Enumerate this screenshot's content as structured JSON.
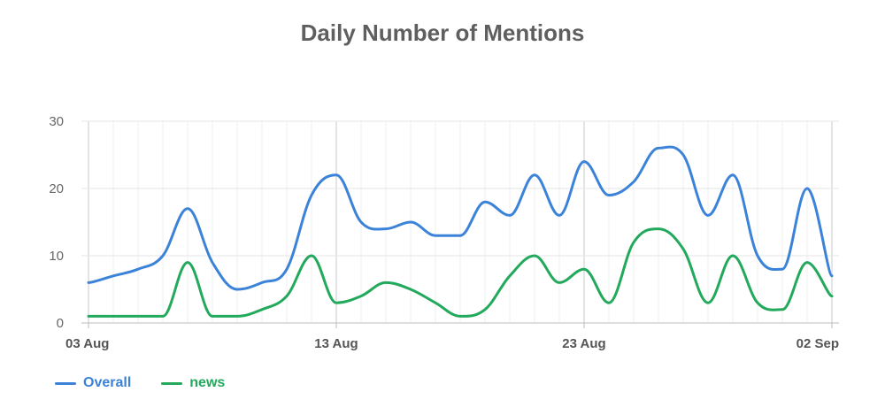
{
  "chart_data": {
    "type": "line",
    "title": "Daily Number of Mentions",
    "xlabel": "",
    "ylabel": "",
    "ylim": [
      0,
      30
    ],
    "yticks": [
      "0",
      "10",
      "20",
      "30"
    ],
    "x_tick_labels": [
      {
        "day": 0,
        "label": "03 Aug"
      },
      {
        "day": 10,
        "label": "13 Aug"
      },
      {
        "day": 20,
        "label": "23 Aug"
      },
      {
        "day": 30,
        "label": "02 Sep"
      }
    ],
    "x": [
      "03 Aug",
      "04 Aug",
      "05 Aug",
      "06 Aug",
      "07 Aug",
      "08 Aug",
      "09 Aug",
      "10 Aug",
      "11 Aug",
      "12 Aug",
      "13 Aug",
      "14 Aug",
      "15 Aug",
      "16 Aug",
      "17 Aug",
      "18 Aug",
      "19 Aug",
      "20 Aug",
      "21 Aug",
      "22 Aug",
      "23 Aug",
      "24 Aug",
      "25 Aug",
      "26 Aug",
      "27 Aug",
      "28 Aug",
      "29 Aug",
      "30 Aug",
      "31 Aug",
      "01 Sep",
      "02 Sep"
    ],
    "grid": true,
    "legend_position": "bottom-left",
    "series": [
      {
        "name": "Overall",
        "color": "#3b82d9",
        "values": [
          6,
          7,
          8,
          10,
          17,
          9,
          5,
          6,
          8,
          19,
          22,
          15,
          14,
          15,
          13,
          13,
          18,
          16,
          22,
          16,
          24,
          19,
          21,
          26,
          25,
          16,
          22,
          10,
          8,
          20,
          7
        ]
      },
      {
        "name": "news",
        "color": "#22a95c",
        "values": [
          1,
          1,
          1,
          1,
          9,
          1,
          1,
          2,
          4,
          10,
          3,
          4,
          6,
          5,
          3,
          1,
          2,
          7,
          10,
          6,
          8,
          3,
          12,
          14,
          11,
          3,
          10,
          3,
          2,
          9,
          4
        ]
      }
    ]
  }
}
